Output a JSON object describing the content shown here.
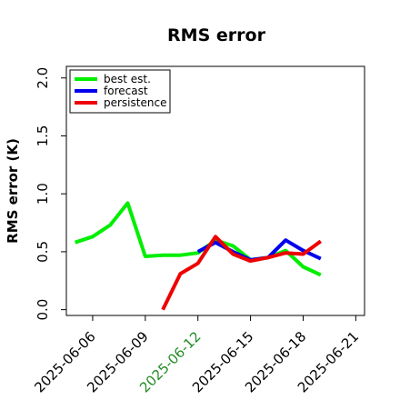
{
  "chart_data": {
    "type": "line",
    "title": "RMS error",
    "xlabel": "",
    "ylabel": "RMS error (K)",
    "x_ticks": [
      {
        "label": "2025-06-06",
        "color": "#000000"
      },
      {
        "label": "2025-06-09",
        "color": "#000000"
      },
      {
        "label": "2025-06-12",
        "color": "#228B22"
      },
      {
        "label": "2025-06-15",
        "color": "#000000"
      },
      {
        "label": "2025-06-18",
        "color": "#000000"
      },
      {
        "label": "2025-06-21",
        "color": "#000000"
      }
    ],
    "y_ticks": [
      "0.0",
      "0.5",
      "1.0",
      "1.5",
      "2.0"
    ],
    "ylim": [
      -0.05,
      2.1
    ],
    "xlim": [
      "2025-06-04T12:00",
      "2025-06-21T12:00"
    ],
    "legend_position": "top-left",
    "grid": false,
    "series": [
      {
        "name": "best est.",
        "color": "#00ee00",
        "points": [
          [
            "2025-06-05",
            0.58
          ],
          [
            "2025-06-06",
            0.63
          ],
          [
            "2025-06-07",
            0.73
          ],
          [
            "2025-06-08",
            0.92
          ],
          [
            "2025-06-09",
            0.46
          ],
          [
            "2025-06-10",
            0.47
          ],
          [
            "2025-06-11",
            0.47
          ],
          [
            "2025-06-12",
            0.49
          ],
          [
            "2025-06-13",
            0.6
          ],
          [
            "2025-06-14",
            0.55
          ],
          [
            "2025-06-15",
            0.43
          ],
          [
            "2025-06-16",
            0.45
          ],
          [
            "2025-06-17",
            0.51
          ],
          [
            "2025-06-18",
            0.37
          ],
          [
            "2025-06-19",
            0.3
          ]
        ]
      },
      {
        "name": "forecast",
        "color": "#0000ee",
        "points": [
          [
            "2025-06-12",
            0.5
          ],
          [
            "2025-06-13",
            0.58
          ],
          [
            "2025-06-14",
            0.5
          ],
          [
            "2025-06-15",
            0.43
          ],
          [
            "2025-06-16",
            0.45
          ],
          [
            "2025-06-17",
            0.6
          ],
          [
            "2025-06-18",
            0.51
          ],
          [
            "2025-06-19",
            0.44
          ]
        ]
      },
      {
        "name": "persistence",
        "color": "#ee0000",
        "points": [
          [
            "2025-06-10",
            0.0
          ],
          [
            "2025-06-11",
            0.31
          ],
          [
            "2025-06-12",
            0.4
          ],
          [
            "2025-06-13",
            0.63
          ],
          [
            "2025-06-14",
            0.48
          ],
          [
            "2025-06-15",
            0.42
          ],
          [
            "2025-06-16",
            0.45
          ],
          [
            "2025-06-17",
            0.49
          ],
          [
            "2025-06-18",
            0.48
          ],
          [
            "2025-06-19",
            0.59
          ]
        ]
      }
    ]
  }
}
